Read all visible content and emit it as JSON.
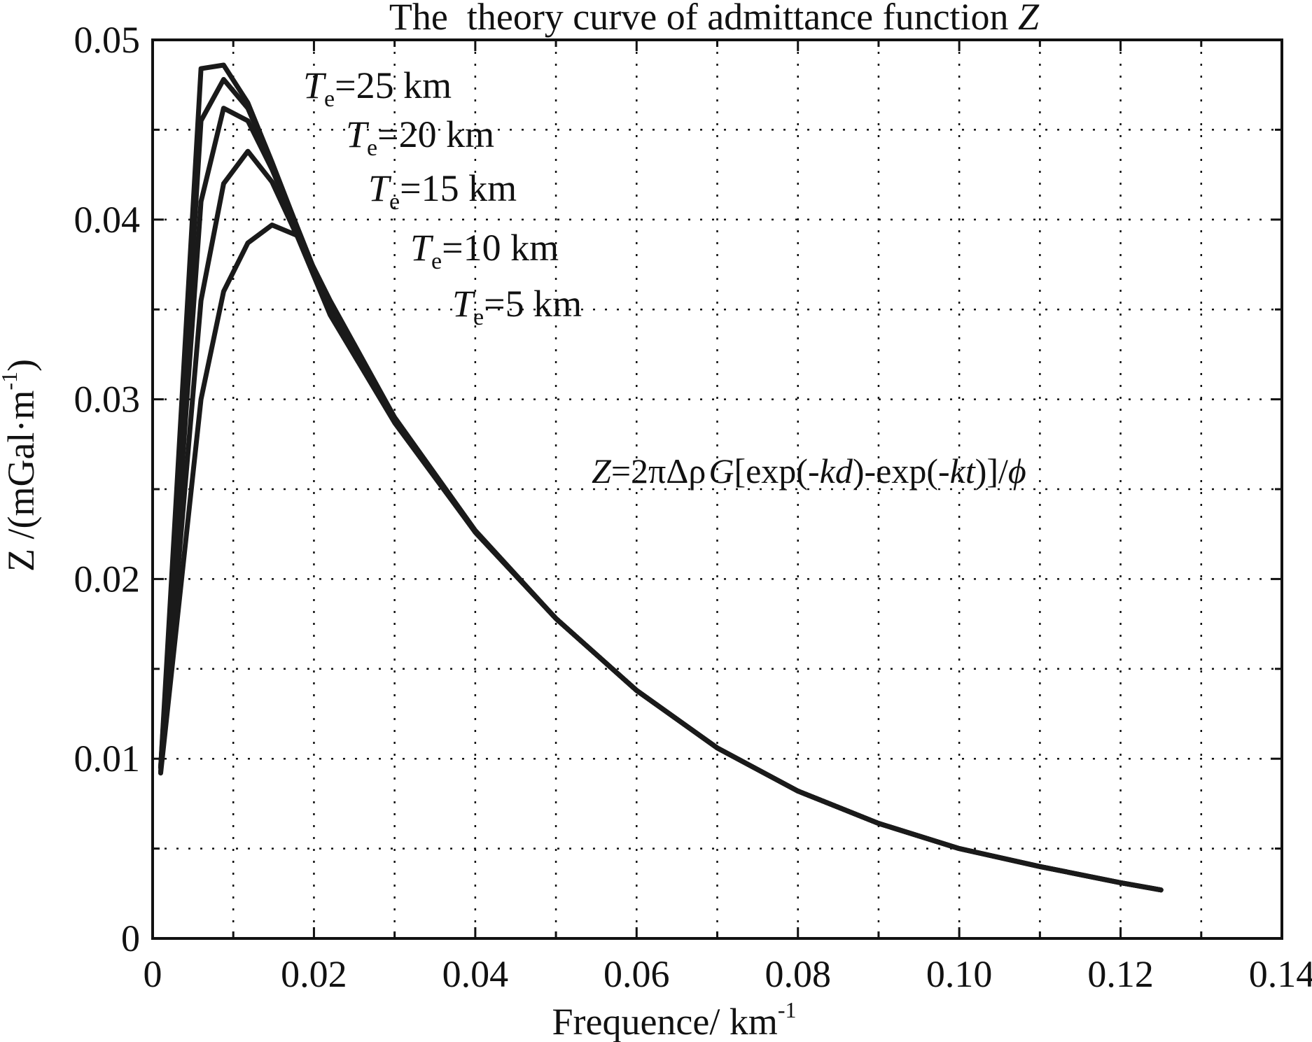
{
  "chart_data": {
    "type": "line",
    "title": "The  theory curve of admittance function ",
    "title_var": "Z",
    "xlabel": "Frequence/ km",
    "xlabel_sup": "-1",
    "ylabel": "Z /(mGal·m",
    "ylabel_sup": "-1",
    "ylabel_end": ")",
    "xlim": [
      0,
      0.14
    ],
    "ylim": [
      0,
      0.05
    ],
    "x_ticks": [
      0,
      0.02,
      0.04,
      0.06,
      0.08,
      0.1,
      0.12,
      0.14
    ],
    "x_tick_labels": [
      "0",
      "0.02",
      "0.04",
      "0.06",
      "0.08",
      "0.10",
      "0.12",
      "0.14"
    ],
    "y_ticks": [
      0,
      0.01,
      0.02,
      0.03,
      0.04,
      0.05
    ],
    "y_tick_labels": [
      "0",
      "0.01",
      "0.02",
      "0.03",
      "0.04",
      "0.05"
    ],
    "grid": true,
    "legend": "inline labels",
    "annotation": {
      "Z": "Z",
      "eq": "=2πΔρ",
      "G": "G",
      "exp1": "[exp(-",
      "kd": "kd",
      "mid": ")-exp(-",
      "kt": "kt",
      "end": ")]/",
      "phi": "ϕ"
    },
    "series": [
      {
        "name": "Te=25 km",
        "label": {
          "T": "T",
          "sub": "e",
          "rest": "=25 km"
        },
        "x": [
          0.001,
          0.006,
          0.0088,
          0.0118,
          0.0148,
          0.018,
          0.022,
          0.03,
          0.04,
          0.05,
          0.06,
          0.07,
          0.08,
          0.09,
          0.1,
          0.11,
          0.12,
          0.125
        ],
        "values": [
          0.0095,
          0.0484,
          0.0486,
          0.0465,
          0.0432,
          0.0395,
          0.035,
          0.0288,
          0.0226,
          0.0178,
          0.0138,
          0.0106,
          0.0082,
          0.0064,
          0.005,
          0.004,
          0.0031,
          0.0027
        ]
      },
      {
        "name": "Te=20 km",
        "label": {
          "T": "T",
          "sub": "e",
          "rest": "=20 km"
        },
        "x": [
          0.001,
          0.006,
          0.0088,
          0.0118,
          0.0148,
          0.018,
          0.022,
          0.03,
          0.04,
          0.05,
          0.06,
          0.07,
          0.08,
          0.09,
          0.1,
          0.11,
          0.12,
          0.125
        ],
        "values": [
          0.0095,
          0.0455,
          0.0478,
          0.0462,
          0.0431,
          0.0395,
          0.035,
          0.0288,
          0.0226,
          0.0178,
          0.0138,
          0.0106,
          0.0082,
          0.0064,
          0.005,
          0.004,
          0.0031,
          0.0027
        ]
      },
      {
        "name": "Te=15 km",
        "label": {
          "T": "T",
          "sub": "e",
          "rest": "=15 km"
        },
        "x": [
          0.001,
          0.006,
          0.0088,
          0.0118,
          0.0148,
          0.018,
          0.022,
          0.03,
          0.04,
          0.05,
          0.06,
          0.07,
          0.08,
          0.09,
          0.1,
          0.11,
          0.12,
          0.125
        ],
        "values": [
          0.0095,
          0.041,
          0.0462,
          0.0455,
          0.0428,
          0.0394,
          0.0349,
          0.0288,
          0.0226,
          0.0178,
          0.0138,
          0.0106,
          0.0082,
          0.0064,
          0.005,
          0.004,
          0.0031,
          0.0027
        ]
      },
      {
        "name": "Te=10 km",
        "label": {
          "T": "T",
          "sub": "e",
          "rest": "=10 km"
        },
        "x": [
          0.001,
          0.006,
          0.0088,
          0.0118,
          0.0148,
          0.018,
          0.022,
          0.03,
          0.04,
          0.05,
          0.06,
          0.07,
          0.08,
          0.09,
          0.1,
          0.11,
          0.12,
          0.125
        ],
        "values": [
          0.0093,
          0.0355,
          0.042,
          0.0438,
          0.0421,
          0.039,
          0.0347,
          0.0287,
          0.0226,
          0.0178,
          0.0138,
          0.0106,
          0.0082,
          0.0064,
          0.005,
          0.004,
          0.0031,
          0.0027
        ]
      },
      {
        "name": "Te=5 km",
        "label": {
          "T": "T",
          "sub": "e",
          "rest": "=5 km"
        },
        "x": [
          0.001,
          0.006,
          0.0088,
          0.0118,
          0.0148,
          0.018,
          0.022,
          0.03,
          0.04,
          0.05,
          0.06,
          0.07,
          0.08,
          0.09,
          0.1,
          0.11,
          0.12,
          0.125
        ],
        "values": [
          0.0092,
          0.03,
          0.036,
          0.0387,
          0.0397,
          0.0391,
          0.0355,
          0.029,
          0.0227,
          0.0178,
          0.0138,
          0.0106,
          0.0082,
          0.0064,
          0.005,
          0.004,
          0.0031,
          0.0027
        ]
      }
    ]
  }
}
